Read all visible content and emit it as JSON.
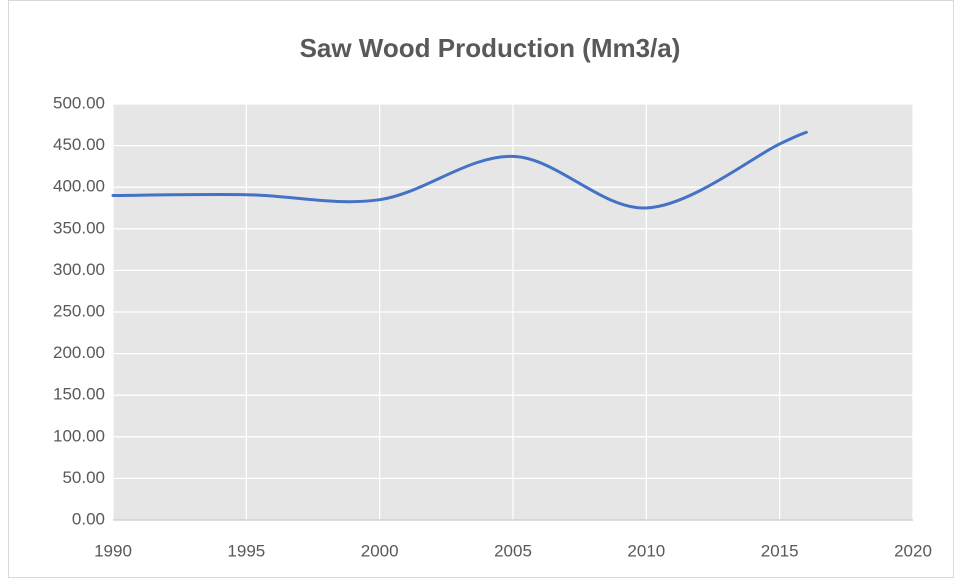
{
  "chart_data": {
    "type": "line",
    "title": "Saw Wood Production (Mm3/a)",
    "x": [
      1990,
      1995,
      2000,
      2005,
      2010,
      2015,
      2016
    ],
    "series": [
      {
        "name": "Saw Wood Production",
        "color": "#4472c4",
        "values": [
          390,
          391,
          385,
          437,
          375,
          452,
          466
        ]
      }
    ],
    "xlim": [
      1990,
      2020
    ],
    "xticks": [
      1990,
      1995,
      2000,
      2005,
      2010,
      2015,
      2020
    ],
    "ylim": [
      0,
      500
    ],
    "yticks": [
      {
        "value": 0,
        "label": "0.00"
      },
      {
        "value": 50,
        "label": "50.00"
      },
      {
        "value": 100,
        "label": "100.00"
      },
      {
        "value": 150,
        "label": "150.00"
      },
      {
        "value": 200,
        "label": "200.00"
      },
      {
        "value": 250,
        "label": "250.00"
      },
      {
        "value": 300,
        "label": "300.00"
      },
      {
        "value": 350,
        "label": "350.00"
      },
      {
        "value": 400,
        "label": "400.00"
      },
      {
        "value": 450,
        "label": "450.00"
      },
      {
        "value": 500,
        "label": "500.00"
      }
    ],
    "grid": true,
    "smooth": true
  }
}
